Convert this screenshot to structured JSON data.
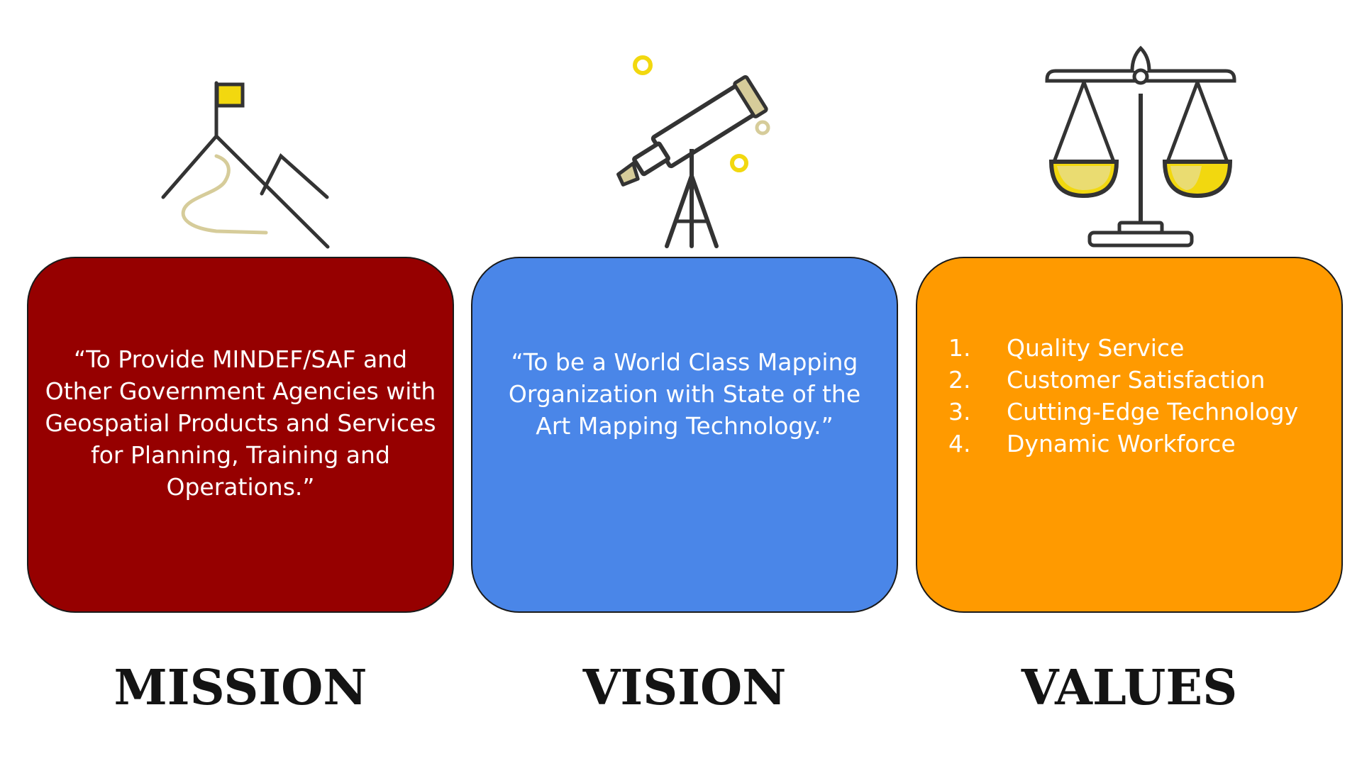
{
  "sections": [
    {
      "id": "mission",
      "label": "MISSION",
      "icon": "mountain-flag-icon",
      "color": "#960000",
      "text": "“To Provide MINDEF/SAF and Other Government Agencies with Geospatial Products and Services for Planning, Training and Operations.”"
    },
    {
      "id": "vision",
      "label": "VISION",
      "icon": "telescope-icon",
      "color": "#4a86e8",
      "text": "“To be a World Class Mapping Organization with State of the Art Mapping Technology.”"
    },
    {
      "id": "values",
      "label": "VALUES",
      "icon": "balance-scale-icon",
      "color": "#ff9a00",
      "items": [
        {
          "num": "1.",
          "text": "Quality Service"
        },
        {
          "num": "2.",
          "text": "Customer Satisfaction"
        },
        {
          "num": "3.",
          "text": "Cutting-Edge Technology"
        },
        {
          "num": "4.",
          "text": "Dynamic Workforce"
        }
      ]
    }
  ],
  "icon_colors": {
    "stroke": "#333333",
    "accent": "#f2d80f",
    "trail": "#d6cc9a"
  }
}
